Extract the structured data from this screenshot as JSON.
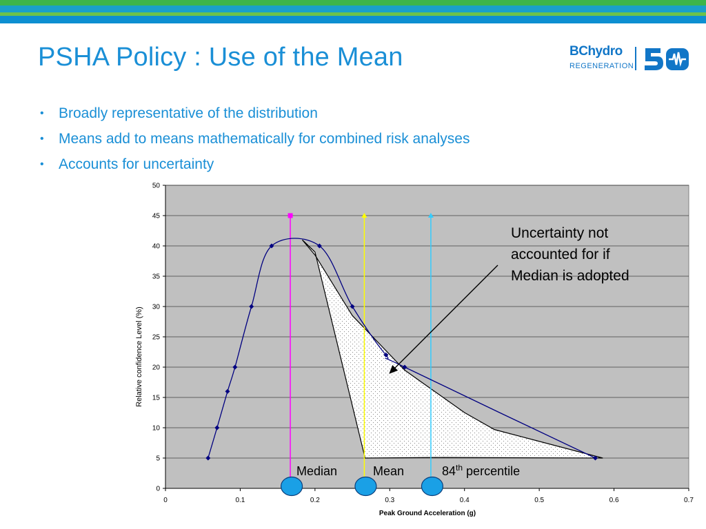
{
  "slide": {
    "title": "PSHA Policy :  Use of the Mean",
    "logo": {
      "brand": "BChydro",
      "tagline": "REGENERATION",
      "anniversary": "50"
    },
    "bullets": [
      "Broadly representative of the distribution",
      "Means add to means mathematically for combined risk analyses",
      "Accounts for uncertainty"
    ],
    "colors": {
      "title": "#1a8fd6",
      "bands": [
        "#3db54a",
        "#1aa0c9",
        "#6cc24a",
        "#0d8fd1"
      ]
    }
  },
  "chart_data": {
    "type": "line",
    "title": "",
    "xlabel": "Peak Ground Acceleration (g)",
    "ylabel": "Relative confidence Level (%)",
    "xlim": [
      0,
      0.7
    ],
    "ylim": [
      0,
      50
    ],
    "xticks": [
      "0",
      "0.1",
      "0.2",
      "0.3",
      "0.4",
      "0.5",
      "0.6",
      "0.7"
    ],
    "yticks": [
      "0",
      "5",
      "10",
      "15",
      "20",
      "25",
      "30",
      "35",
      "40",
      "45",
      "50"
    ],
    "grid": true,
    "plot_background": "#c0c0c0",
    "series": [
      {
        "color": "#000080",
        "points": [
          [
            0.057,
            5
          ],
          [
            0.069,
            10
          ],
          [
            0.083,
            16
          ],
          [
            0.093,
            20
          ],
          [
            0.115,
            30
          ],
          [
            0.142,
            40
          ],
          [
            0.206,
            40
          ],
          [
            0.25,
            30
          ],
          [
            0.295,
            22
          ],
          [
            0.32,
            20
          ],
          [
            0.575,
            5
          ]
        ]
      }
    ],
    "uncertainty_region": {
      "fill": "dotted",
      "points": [
        [
          0.183,
          41
        ],
        [
          0.2,
          39
        ],
        [
          0.267,
          5
        ],
        [
          0.37,
          5.1
        ],
        [
          0.585,
          5
        ],
        [
          0.44,
          9.7
        ],
        [
          0.4,
          12.5
        ],
        [
          0.36,
          16
        ],
        [
          0.32,
          19.5
        ],
        [
          0.25,
          28.5
        ],
        [
          0.2,
          38.5
        ]
      ]
    },
    "markers": [
      {
        "label": "Median",
        "x": 0.167,
        "top": 45,
        "color": "#ff00ff"
      },
      {
        "label": "Mean",
        "x": 0.266,
        "top": 45,
        "color": "#ffff00"
      },
      {
        "label": "84",
        "superscript": "th",
        "suffix": " percentile",
        "x": 0.355,
        "top": 45,
        "color": "#33ccff"
      }
    ],
    "marker_dot_color": "#1aa0e6",
    "annotation": {
      "lines": [
        "Uncertainty not",
        "accounted for if",
        "Median is adopted"
      ],
      "arrow_to": [
        0.3,
        19
      ]
    }
  }
}
